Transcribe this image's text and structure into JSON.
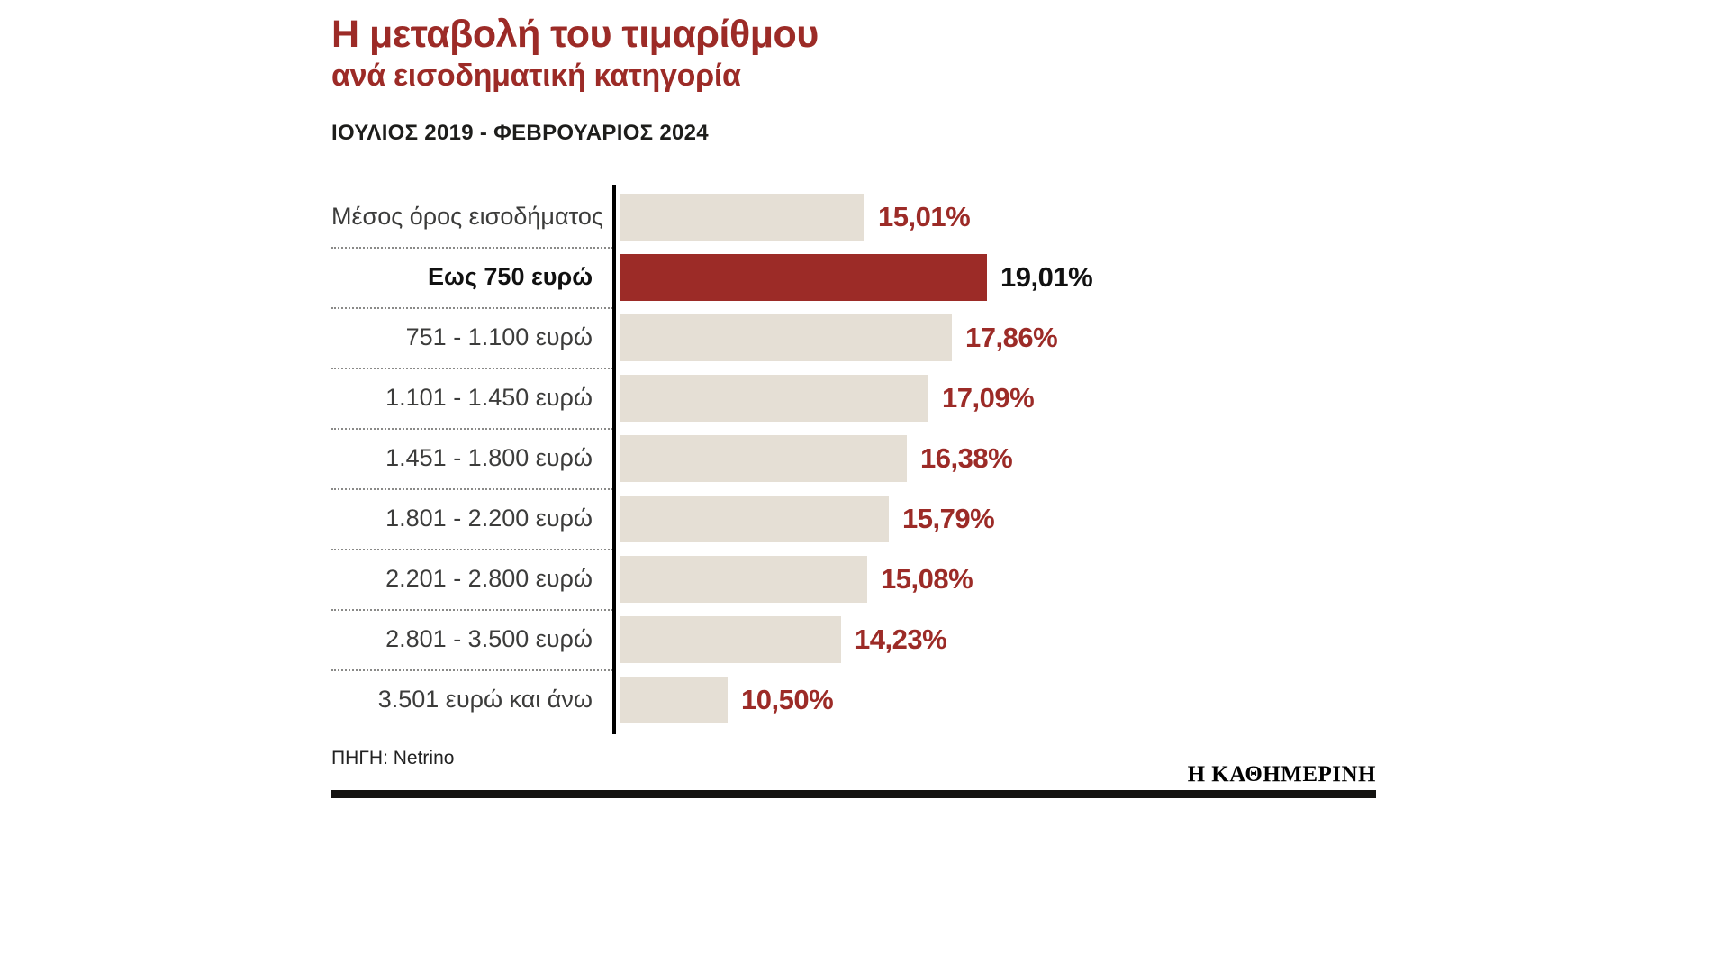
{
  "header": {
    "title_line1": "Η μεταβολή του τιμαρίθμου",
    "title_line2": "ανά εισοδηματική κατηγορία",
    "period": "ΙΟΥΛΙΟΣ 2019 - ΦΕΒΡΟΥΑΡΙΟΣ 2024"
  },
  "chart_data": {
    "type": "bar",
    "orientation": "horizontal",
    "title": "Η μεταβολή του τιμαρίθμου ανά εισοδηματική κατηγορία",
    "subtitle": "ΙΟΥΛΙΟΣ 2019 - ΦΕΒΡΟΥΑΡΙΟΣ 2024",
    "categories": [
      "Μέσος όρος εισοδήματος",
      "Εως 750 ευρώ",
      "751 - 1.100 ευρώ",
      "1.101 - 1.450 ευρώ",
      "1.451 - 1.800 ευρώ",
      "1.801 - 2.200 ευρώ",
      "2.201 - 2.800 ευρώ",
      "2.801 - 3.500 ευρώ",
      "3.501 ευρώ και άνω"
    ],
    "values": [
      15.01,
      19.01,
      17.86,
      17.09,
      16.38,
      15.79,
      15.08,
      14.23,
      10.5
    ],
    "value_labels": [
      "15,01%",
      "19,01%",
      "17,86%",
      "17,09%",
      "16,38%",
      "15,79%",
      "15,08%",
      "14,23%",
      "10,50%"
    ],
    "unit": "%",
    "highlight_index": 1,
    "xlim": [
      6.95,
      19.2
    ],
    "grid": false,
    "legend": false,
    "colors": {
      "bar": "#e5dfd5",
      "highlight_bar": "#9c2b27",
      "value_text": "#9c2b27",
      "highlight_value_text": "#111111",
      "title_text": "#9c2b27",
      "axis": "#000000"
    }
  },
  "footer": {
    "source": "ΠΗΓΗ: Netrino",
    "brand": "Η ΚΑΘΗΜΕΡΙΝΗ"
  }
}
